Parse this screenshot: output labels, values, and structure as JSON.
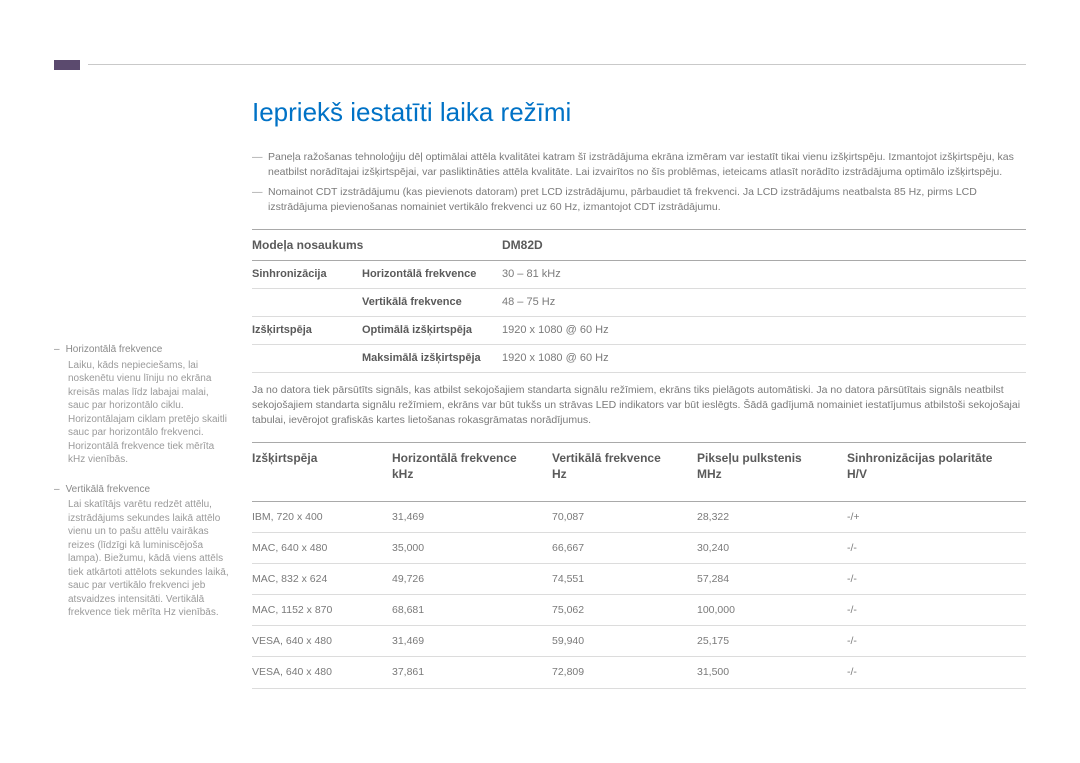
{
  "title": "Iepriekš iestatīti laika režīmi",
  "notes": [
    "Paneļa ražošanas tehnoloģiju dēļ optimālai attēla kvalitātei katram šī izstrādājuma ekrāna izmēram var iestatīt tikai vienu izšķirtspēju. Izmantojot izšķirtspēju, kas neatbilst norādītajai izšķirtspējai, var pasliktināties attēla kvalitāte. Lai izvairītos no šīs problēmas, ieteicams atlasīt norādīto izstrādājuma optimālo izšķirtspēju.",
    "Nomainot CDT izstrādājumu (kas pievienots datoram) pret LCD izstrādājumu, pārbaudiet tā frekvenci. Ja LCD izstrādājums neatbalsta 85 Hz, pirms LCD izstrādājuma pievienošanas nomainiet vertikālo frekvenci uz 60 Hz, izmantojot CDT izstrādājumu."
  ],
  "spec_header": {
    "label": "Modeļa nosaukums",
    "value": "DM82D"
  },
  "spec_rows": [
    {
      "group": "Sinhronizācija",
      "label": "Horizontālā frekvence",
      "value": "30 – 81 kHz"
    },
    {
      "group": "",
      "label": "Vertikālā frekvence",
      "value": "48 – 75 Hz"
    },
    {
      "group": "Izšķirtspēja",
      "label": "Optimālā izšķirtspēja",
      "value": "1920 x 1080 @ 60 Hz"
    },
    {
      "group": "",
      "label": "Maksimālā izšķirtspēja",
      "value": "1920 x 1080 @ 60 Hz"
    }
  ],
  "body_text": "Ja no datora tiek pārsūtīts signāls, kas atbilst sekojošajiem standarta signālu režīmiem, ekrāns tiks pielāgots automātiski. Ja no datora pārsūtītais signāls neatbilst sekojošajiem standarta signālu režīmiem, ekrāns var būt tukšs un strāvas LED indikators var būt ieslēgts. Šādā gadījumā nomainiet iestatījumus atbilstoši sekojošajai tabulai, ievērojot grafiskās kartes lietošanas rokasgrāmatas norādījumus.",
  "timing_headers": {
    "c1": "Izšķirtspēja",
    "c2": "Horizontālā frekvence\nkHz",
    "c3": "Vertikālā frekvence\nHz",
    "c4": "Pikseļu pulkstenis\nMHz",
    "c5": "Sinhronizācijas polaritāte\nH/V"
  },
  "timing_rows": [
    {
      "c1": "IBM, 720 x 400",
      "c2": "31,469",
      "c3": "70,087",
      "c4": "28,322",
      "c5": "-/+"
    },
    {
      "c1": "MAC, 640 x 480",
      "c2": "35,000",
      "c3": "66,667",
      "c4": "30,240",
      "c5": "-/-"
    },
    {
      "c1": "MAC, 832 x 624",
      "c2": "49,726",
      "c3": "74,551",
      "c4": "57,284",
      "c5": "-/-"
    },
    {
      "c1": "MAC, 1152 x 870",
      "c2": "68,681",
      "c3": "75,062",
      "c4": "100,000",
      "c5": "-/-"
    },
    {
      "c1": "VESA, 640 x 480",
      "c2": "31,469",
      "c3": "59,940",
      "c4": "25,175",
      "c5": "-/-"
    },
    {
      "c1": "VESA, 640 x 480",
      "c2": "37,861",
      "c3": "72,809",
      "c4": "31,500",
      "c5": "-/-"
    }
  ],
  "sidebar": {
    "items": [
      {
        "title": "Horizontālā frekvence",
        "desc": "Laiku, kāds nepieciešams, lai noskenētu vienu līniju no ekrāna kreisās malas līdz labajai malai, sauc par horizontālo ciklu. Horizontālajam ciklam pretējo skaitli sauc par horizontālo frekvenci. Horizontālā frekvence tiek mērīta kHz vienībās."
      },
      {
        "title": "Vertikālā frekvence",
        "desc": "Lai skatītājs varētu redzēt attēlu, izstrādājums sekundes laikā attēlo vienu un to pašu attēlu vairākas reizes (līdzīgi kā luminiscējoša lampa). Biežumu, kādā viens attēls tiek atkārtoti attēlots sekundes laikā, sauc par vertikālo frekvenci jeb atsvaidzes intensitāti. Vertikālā frekvence tiek mērīta Hz vienībās."
      }
    ]
  }
}
